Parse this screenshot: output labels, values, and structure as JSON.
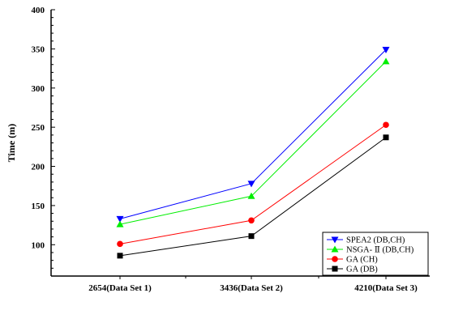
{
  "chart_data": {
    "type": "line",
    "title": "",
    "xlabel": "",
    "ylabel": "Time (m)",
    "categories": [
      "2654(Data Set 1)",
      "3436(Data Set 2)",
      "4210(Data Set 3)"
    ],
    "ylim": [
      60,
      400
    ],
    "yticks": [
      100,
      150,
      200,
      250,
      300,
      350,
      400
    ],
    "grid": false,
    "legend_position": "bottom-right",
    "series": [
      {
        "name": "SPEA2 (DB,CH)",
        "values": [
          133,
          178,
          349
        ],
        "color": "#0000ff",
        "marker": "triangle-down"
      },
      {
        "name": "NSGA- Ⅱ (DB,CH)",
        "values": [
          126,
          162,
          334
        ],
        "color": "#00ee00",
        "marker": "triangle-up"
      },
      {
        "name": "GA (CH)",
        "values": [
          101,
          131,
          253
        ],
        "color": "#ff0000",
        "marker": "circle"
      },
      {
        "name": "GA (DB)",
        "values": [
          86,
          111,
          237
        ],
        "color": "#000000",
        "marker": "square"
      }
    ]
  }
}
